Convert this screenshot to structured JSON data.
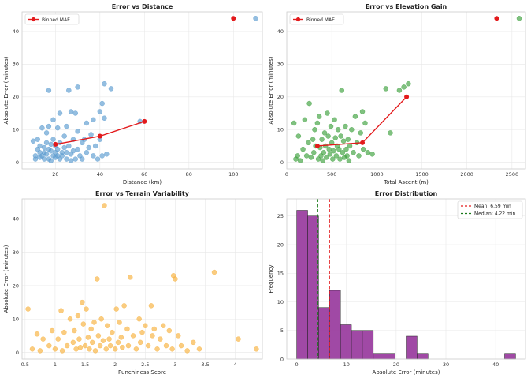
{
  "chart_data": [
    {
      "id": "distance",
      "type": "scatter",
      "title": "Error vs Distance",
      "xlabel": "Distance (km)",
      "ylabel": "Absolute Error (minutes)",
      "xlim": [
        5,
        113
      ],
      "ylim": [
        -2,
        46
      ],
      "xticks": [
        20,
        40,
        60,
        80,
        100
      ],
      "yticks": [
        0,
        10,
        20,
        30,
        40
      ],
      "color": "#5b9bd0",
      "points": [
        [
          10,
          6.5
        ],
        [
          11,
          2
        ],
        [
          11,
          1
        ],
        [
          12,
          4
        ],
        [
          12,
          7
        ],
        [
          13,
          3
        ],
        [
          13,
          1.5
        ],
        [
          13,
          5
        ],
        [
          14,
          2
        ],
        [
          14,
          10.5
        ],
        [
          15,
          4.5
        ],
        [
          15,
          1
        ],
        [
          15,
          3
        ],
        [
          16,
          6
        ],
        [
          16,
          9
        ],
        [
          16,
          2.5
        ],
        [
          17,
          22
        ],
        [
          17,
          11
        ],
        [
          17,
          4
        ],
        [
          17,
          1
        ],
        [
          18,
          3.5
        ],
        [
          18,
          5.5
        ],
        [
          18,
          0.5
        ],
        [
          19,
          2
        ],
        [
          19,
          7
        ],
        [
          19,
          13
        ],
        [
          20,
          1.5
        ],
        [
          20,
          5
        ],
        [
          20,
          3
        ],
        [
          21,
          10.5
        ],
        [
          21,
          2
        ],
        [
          21,
          4
        ],
        [
          22,
          15
        ],
        [
          22,
          6
        ],
        [
          22,
          1
        ],
        [
          23,
          3
        ],
        [
          23,
          2
        ],
        [
          24,
          8
        ],
        [
          24,
          4.5
        ],
        [
          25,
          1
        ],
        [
          25,
          11
        ],
        [
          25,
          3
        ],
        [
          26,
          22
        ],
        [
          26,
          5
        ],
        [
          27,
          15.5
        ],
        [
          27,
          2.5
        ],
        [
          27,
          0.5
        ],
        [
          28,
          7
        ],
        [
          28,
          3.5
        ],
        [
          29,
          15
        ],
        [
          29,
          1
        ],
        [
          30,
          23
        ],
        [
          30,
          9.5
        ],
        [
          30,
          4
        ],
        [
          31,
          2
        ],
        [
          32,
          6
        ],
        [
          32,
          1
        ],
        [
          33,
          7
        ],
        [
          34,
          12
        ],
        [
          34,
          3
        ],
        [
          35,
          4.5
        ],
        [
          36,
          8.5
        ],
        [
          37,
          2
        ],
        [
          37,
          13
        ],
        [
          38,
          5
        ],
        [
          39,
          1
        ],
        [
          40,
          15.5
        ],
        [
          40,
          7
        ],
        [
          41,
          18
        ],
        [
          41,
          2
        ],
        [
          42,
          24
        ],
        [
          42,
          13.5
        ],
        [
          43,
          2.5
        ],
        [
          45,
          22.5
        ],
        [
          58,
          12.5
        ],
        [
          110,
          44
        ]
      ],
      "series_line": {
        "name": "Binned MAE",
        "color": "#e31a1c",
        "x": [
          20,
          40,
          60,
          100
        ],
        "y": [
          5.5,
          8,
          12.5,
          44
        ]
      },
      "legend": [
        "Binned MAE"
      ]
    },
    {
      "id": "elevation",
      "type": "scatter",
      "title": "Error vs Elevation Gain",
      "xlabel": "Total Ascent (m)",
      "ylabel": "Absolute Error (minutes)",
      "xlim": [
        0,
        2650
      ],
      "ylim": [
        -2,
        46
      ],
      "xticks": [
        0,
        500,
        1000,
        1500,
        2000,
        2500
      ],
      "yticks": [
        0,
        10,
        20,
        30,
        40
      ],
      "color": "#3ca03c",
      "points": [
        [
          80,
          12
        ],
        [
          100,
          1
        ],
        [
          120,
          2
        ],
        [
          130,
          8
        ],
        [
          150,
          0.5
        ],
        [
          180,
          4
        ],
        [
          200,
          13
        ],
        [
          220,
          2
        ],
        [
          240,
          6
        ],
        [
          250,
          18
        ],
        [
          270,
          1.5
        ],
        [
          290,
          7
        ],
        [
          300,
          3
        ],
        [
          310,
          10
        ],
        [
          320,
          5
        ],
        [
          340,
          12
        ],
        [
          350,
          1
        ],
        [
          360,
          14
        ],
        [
          370,
          4.5
        ],
        [
          380,
          2
        ],
        [
          390,
          7
        ],
        [
          400,
          0.5
        ],
        [
          410,
          3
        ],
        [
          420,
          9
        ],
        [
          430,
          5
        ],
        [
          440,
          1.5
        ],
        [
          450,
          15
        ],
        [
          460,
          8
        ],
        [
          470,
          4
        ],
        [
          480,
          2.5
        ],
        [
          490,
          11
        ],
        [
          500,
          6
        ],
        [
          510,
          1
        ],
        [
          520,
          3.5
        ],
        [
          530,
          13
        ],
        [
          540,
          7.5
        ],
        [
          550,
          2
        ],
        [
          560,
          5
        ],
        [
          570,
          10
        ],
        [
          580,
          4
        ],
        [
          590,
          1
        ],
        [
          600,
          8
        ],
        [
          610,
          22
        ],
        [
          620,
          3
        ],
        [
          630,
          6.5
        ],
        [
          640,
          1.5
        ],
        [
          650,
          11
        ],
        [
          660,
          4
        ],
        [
          670,
          2
        ],
        [
          680,
          7
        ],
        [
          690,
          0.5
        ],
        [
          700,
          5
        ],
        [
          720,
          10
        ],
        [
          740,
          3
        ],
        [
          760,
          14
        ],
        [
          780,
          6
        ],
        [
          800,
          2
        ],
        [
          820,
          9
        ],
        [
          840,
          15.5
        ],
        [
          850,
          4
        ],
        [
          870,
          12
        ],
        [
          900,
          3
        ],
        [
          950,
          2.5
        ],
        [
          1100,
          22.5
        ],
        [
          1150,
          9
        ],
        [
          1250,
          22
        ],
        [
          1300,
          23
        ],
        [
          1350,
          24
        ],
        [
          2580,
          44
        ]
      ],
      "series_line": {
        "name": "Binned MAE",
        "color": "#e31a1c",
        "x": [
          340,
          840,
          1330,
          2330
        ],
        "y": [
          5,
          6,
          20,
          44
        ]
      },
      "legend": [
        "Binned MAE"
      ]
    },
    {
      "id": "terrain",
      "type": "scatter",
      "title": "Error vs Terrain Variability",
      "xlabel": "Punchiness Score",
      "ylabel": "Absolute Error (minutes)",
      "xlim": [
        0.45,
        4.45
      ],
      "ylim": [
        -2,
        46
      ],
      "xticks": [
        0.5,
        1.0,
        1.5,
        2.0,
        2.5,
        3.0,
        3.5,
        4.0
      ],
      "yticks": [
        0,
        10,
        20,
        30,
        40
      ],
      "color": "#f7b13c",
      "points": [
        [
          0.55,
          13
        ],
        [
          0.62,
          1
        ],
        [
          0.7,
          5.5
        ],
        [
          0.75,
          0.5
        ],
        [
          0.8,
          4
        ],
        [
          0.9,
          2
        ],
        [
          0.95,
          6.5
        ],
        [
          1.0,
          1
        ],
        [
          1.05,
          4
        ],
        [
          1.1,
          12.5
        ],
        [
          1.12,
          0.5
        ],
        [
          1.15,
          6
        ],
        [
          1.2,
          2
        ],
        [
          1.25,
          10
        ],
        [
          1.3,
          3
        ],
        [
          1.32,
          6.5
        ],
        [
          1.35,
          1
        ],
        [
          1.38,
          11
        ],
        [
          1.4,
          4
        ],
        [
          1.42,
          1.5
        ],
        [
          1.45,
          15
        ],
        [
          1.47,
          8.5
        ],
        [
          1.5,
          2
        ],
        [
          1.52,
          13
        ],
        [
          1.55,
          4.5
        ],
        [
          1.57,
          1
        ],
        [
          1.6,
          7
        ],
        [
          1.62,
          3
        ],
        [
          1.65,
          9
        ],
        [
          1.67,
          0.5
        ],
        [
          1.7,
          22
        ],
        [
          1.72,
          5
        ],
        [
          1.75,
          2
        ],
        [
          1.77,
          10
        ],
        [
          1.8,
          3.5
        ],
        [
          1.82,
          44
        ],
        [
          1.85,
          1
        ],
        [
          1.87,
          8
        ],
        [
          1.9,
          4
        ],
        [
          1.92,
          2
        ],
        [
          1.95,
          6
        ],
        [
          2.0,
          1
        ],
        [
          2.02,
          13
        ],
        [
          2.05,
          3
        ],
        [
          2.07,
          9
        ],
        [
          2.1,
          4.5
        ],
        [
          2.12,
          1.5
        ],
        [
          2.15,
          14
        ],
        [
          2.2,
          7
        ],
        [
          2.22,
          2
        ],
        [
          2.25,
          22.5
        ],
        [
          2.3,
          5
        ],
        [
          2.35,
          1
        ],
        [
          2.4,
          10
        ],
        [
          2.42,
          3
        ],
        [
          2.45,
          6
        ],
        [
          2.5,
          8
        ],
        [
          2.55,
          2
        ],
        [
          2.6,
          14
        ],
        [
          2.62,
          5
        ],
        [
          2.65,
          7
        ],
        [
          2.7,
          1
        ],
        [
          2.75,
          4
        ],
        [
          2.8,
          8
        ],
        [
          2.85,
          2
        ],
        [
          2.9,
          6.5
        ],
        [
          2.95,
          1
        ],
        [
          2.97,
          23
        ],
        [
          3.0,
          22
        ],
        [
          3.05,
          5
        ],
        [
          3.1,
          2
        ],
        [
          3.2,
          0.5
        ],
        [
          3.3,
          3
        ],
        [
          3.4,
          1
        ],
        [
          3.65,
          24
        ],
        [
          4.05,
          4
        ],
        [
          4.35,
          1
        ]
      ],
      "legend": []
    },
    {
      "id": "distribution",
      "type": "bar",
      "title": "Error Distribution",
      "xlabel": "Absolute Error (minutes)",
      "ylabel": "Frequency",
      "xlim": [
        -2,
        46
      ],
      "ylim": [
        0,
        28
      ],
      "xticks": [
        0,
        10,
        20,
        30,
        40
      ],
      "yticks": [
        0,
        5,
        10,
        15,
        20,
        25
      ],
      "color": "#9b3fa0",
      "bin_width": 2.2,
      "bin_start": 0,
      "values": [
        26,
        25,
        9,
        12,
        6,
        5,
        5,
        1,
        1,
        0,
        4,
        1,
        0,
        0,
        0,
        0,
        0,
        0,
        0,
        1
      ],
      "mean": 6.59,
      "median": 4.22,
      "legend": [
        "Mean: 6.59 min",
        "Median: 4.22 min"
      ]
    }
  ]
}
